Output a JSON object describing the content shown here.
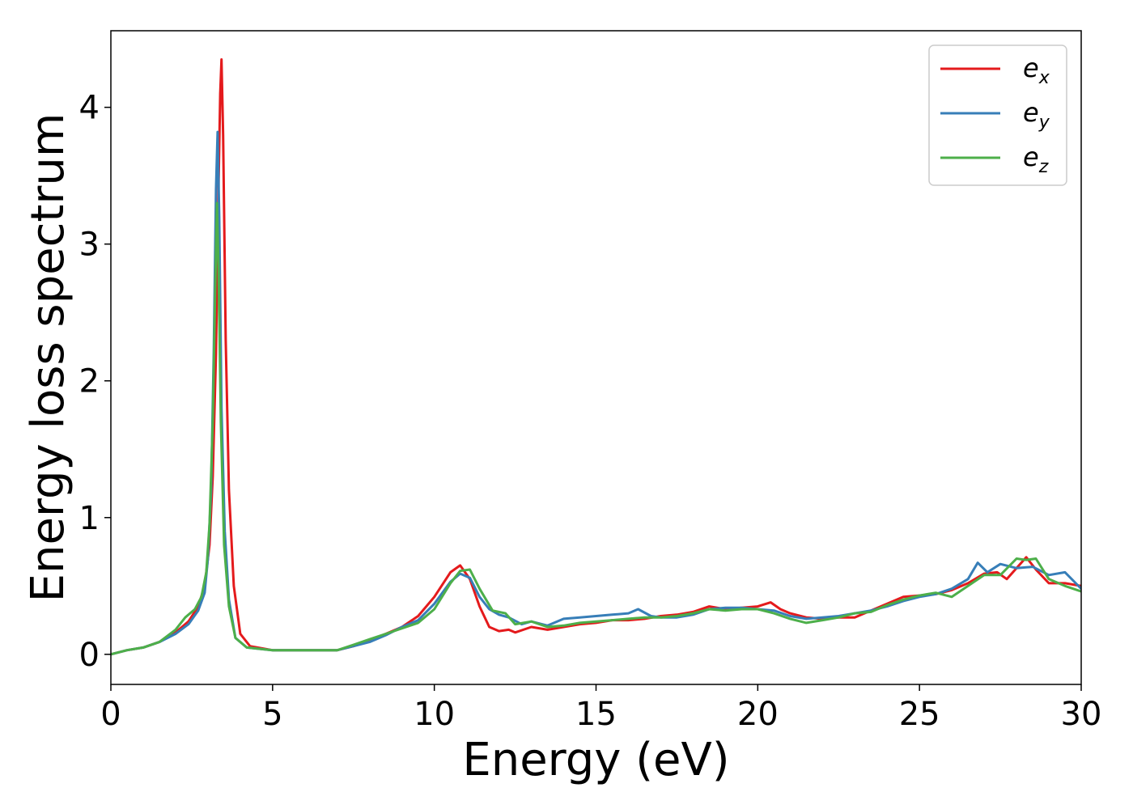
{
  "chart_data": {
    "type": "line",
    "title": "",
    "xlabel": "Energy (eV)",
    "ylabel": "Energy loss spectrum",
    "xlim": [
      0,
      30
    ],
    "ylim": [
      -0.22,
      4.56
    ],
    "xticks": [
      0,
      5,
      10,
      15,
      20,
      25,
      30
    ],
    "yticks": [
      0,
      1,
      2,
      3,
      4
    ],
    "grid": false,
    "legend_position": "top-right",
    "series": [
      {
        "name": "e_x",
        "legend_base": "e",
        "legend_sub": "x",
        "color": "#e41a1c",
        "points": [
          [
            0,
            0
          ],
          [
            0.5,
            0.03
          ],
          [
            1,
            0.05
          ],
          [
            1.5,
            0.09
          ],
          [
            2,
            0.16
          ],
          [
            2.4,
            0.24
          ],
          [
            2.7,
            0.35
          ],
          [
            2.9,
            0.5
          ],
          [
            3.05,
            0.8
          ],
          [
            3.15,
            1.3
          ],
          [
            3.25,
            2.2
          ],
          [
            3.32,
            3.3
          ],
          [
            3.38,
            4.1
          ],
          [
            3.42,
            4.35
          ],
          [
            3.47,
            3.8
          ],
          [
            3.55,
            2.3
          ],
          [
            3.65,
            1.2
          ],
          [
            3.8,
            0.5
          ],
          [
            4,
            0.15
          ],
          [
            4.3,
            0.06
          ],
          [
            5,
            0.03
          ],
          [
            6,
            0.03
          ],
          [
            7,
            0.03
          ],
          [
            7.5,
            0.06
          ],
          [
            8,
            0.1
          ],
          [
            8.5,
            0.15
          ],
          [
            9,
            0.2
          ],
          [
            9.5,
            0.28
          ],
          [
            10,
            0.42
          ],
          [
            10.5,
            0.6
          ],
          [
            10.8,
            0.65
          ],
          [
            11.1,
            0.55
          ],
          [
            11.4,
            0.35
          ],
          [
            11.7,
            0.2
          ],
          [
            12,
            0.17
          ],
          [
            12.3,
            0.18
          ],
          [
            12.5,
            0.16
          ],
          [
            13,
            0.2
          ],
          [
            13.5,
            0.18
          ],
          [
            14,
            0.2
          ],
          [
            14.5,
            0.22
          ],
          [
            15,
            0.23
          ],
          [
            15.5,
            0.25
          ],
          [
            16,
            0.25
          ],
          [
            16.5,
            0.26
          ],
          [
            17,
            0.28
          ],
          [
            17.5,
            0.29
          ],
          [
            18,
            0.31
          ],
          [
            18.5,
            0.35
          ],
          [
            19,
            0.33
          ],
          [
            19.5,
            0.34
          ],
          [
            20,
            0.35
          ],
          [
            20.4,
            0.38
          ],
          [
            20.7,
            0.33
          ],
          [
            21,
            0.3
          ],
          [
            21.5,
            0.27
          ],
          [
            22,
            0.26
          ],
          [
            22.5,
            0.27
          ],
          [
            23,
            0.27
          ],
          [
            23.5,
            0.32
          ],
          [
            24,
            0.37
          ],
          [
            24.5,
            0.42
          ],
          [
            25,
            0.43
          ],
          [
            25.5,
            0.44
          ],
          [
            26,
            0.47
          ],
          [
            26.5,
            0.52
          ],
          [
            27,
            0.59
          ],
          [
            27.4,
            0.6
          ],
          [
            27.7,
            0.55
          ],
          [
            28,
            0.63
          ],
          [
            28.3,
            0.71
          ],
          [
            28.6,
            0.62
          ],
          [
            29,
            0.52
          ],
          [
            29.5,
            0.52
          ],
          [
            30,
            0.5
          ]
        ]
      },
      {
        "name": "e_y",
        "legend_base": "e",
        "legend_sub": "y",
        "color": "#377eb8",
        "points": [
          [
            0,
            0
          ],
          [
            0.5,
            0.03
          ],
          [
            1,
            0.05
          ],
          [
            1.5,
            0.09
          ],
          [
            2,
            0.15
          ],
          [
            2.4,
            0.22
          ],
          [
            2.7,
            0.32
          ],
          [
            2.9,
            0.45
          ],
          [
            3.0,
            0.7
          ],
          [
            3.1,
            1.2
          ],
          [
            3.18,
            2.2
          ],
          [
            3.25,
            3.4
          ],
          [
            3.3,
            3.82
          ],
          [
            3.35,
            3.2
          ],
          [
            3.42,
            1.8
          ],
          [
            3.52,
            0.9
          ],
          [
            3.65,
            0.4
          ],
          [
            3.85,
            0.12
          ],
          [
            4.2,
            0.05
          ],
          [
            5,
            0.03
          ],
          [
            6,
            0.03
          ],
          [
            7,
            0.03
          ],
          [
            7.5,
            0.06
          ],
          [
            8,
            0.09
          ],
          [
            8.5,
            0.14
          ],
          [
            9,
            0.2
          ],
          [
            9.5,
            0.25
          ],
          [
            10,
            0.37
          ],
          [
            10.5,
            0.53
          ],
          [
            10.8,
            0.59
          ],
          [
            11.1,
            0.56
          ],
          [
            11.4,
            0.42
          ],
          [
            11.7,
            0.33
          ],
          [
            12,
            0.29
          ],
          [
            12.3,
            0.27
          ],
          [
            12.7,
            0.22
          ],
          [
            13,
            0.24
          ],
          [
            13.5,
            0.21
          ],
          [
            14,
            0.26
          ],
          [
            14.5,
            0.27
          ],
          [
            15,
            0.28
          ],
          [
            15.5,
            0.29
          ],
          [
            16,
            0.3
          ],
          [
            16.3,
            0.33
          ],
          [
            16.7,
            0.28
          ],
          [
            17,
            0.27
          ],
          [
            17.5,
            0.27
          ],
          [
            18,
            0.29
          ],
          [
            18.5,
            0.33
          ],
          [
            19,
            0.34
          ],
          [
            19.5,
            0.34
          ],
          [
            20,
            0.33
          ],
          [
            20.5,
            0.32
          ],
          [
            21,
            0.28
          ],
          [
            21.5,
            0.26
          ],
          [
            22,
            0.27
          ],
          [
            22.5,
            0.28
          ],
          [
            23,
            0.3
          ],
          [
            23.5,
            0.32
          ],
          [
            24,
            0.35
          ],
          [
            24.5,
            0.39
          ],
          [
            25,
            0.42
          ],
          [
            25.5,
            0.44
          ],
          [
            26,
            0.48
          ],
          [
            26.5,
            0.55
          ],
          [
            26.8,
            0.67
          ],
          [
            27.1,
            0.6
          ],
          [
            27.5,
            0.66
          ],
          [
            28,
            0.63
          ],
          [
            28.5,
            0.64
          ],
          [
            29,
            0.58
          ],
          [
            29.5,
            0.6
          ],
          [
            30,
            0.48
          ]
        ]
      },
      {
        "name": "e_z",
        "legend_base": "e",
        "legend_sub": "z",
        "color": "#4daf4a",
        "points": [
          [
            0,
            0
          ],
          [
            0.5,
            0.03
          ],
          [
            1,
            0.05
          ],
          [
            1.5,
            0.09
          ],
          [
            2,
            0.18
          ],
          [
            2.3,
            0.27
          ],
          [
            2.6,
            0.33
          ],
          [
            2.8,
            0.42
          ],
          [
            2.95,
            0.6
          ],
          [
            3.05,
            0.95
          ],
          [
            3.15,
            1.7
          ],
          [
            3.22,
            2.6
          ],
          [
            3.28,
            3.3
          ],
          [
            3.33,
            2.8
          ],
          [
            3.4,
            1.7
          ],
          [
            3.5,
            0.8
          ],
          [
            3.65,
            0.35
          ],
          [
            3.85,
            0.12
          ],
          [
            4.2,
            0.05
          ],
          [
            5,
            0.03
          ],
          [
            6,
            0.03
          ],
          [
            7,
            0.03
          ],
          [
            7.5,
            0.07
          ],
          [
            8,
            0.11
          ],
          [
            8.5,
            0.15
          ],
          [
            9,
            0.19
          ],
          [
            9.5,
            0.23
          ],
          [
            10,
            0.33
          ],
          [
            10.5,
            0.52
          ],
          [
            10.8,
            0.61
          ],
          [
            11.1,
            0.62
          ],
          [
            11.4,
            0.48
          ],
          [
            11.8,
            0.32
          ],
          [
            12.2,
            0.3
          ],
          [
            12.5,
            0.22
          ],
          [
            13,
            0.24
          ],
          [
            13.5,
            0.2
          ],
          [
            14,
            0.21
          ],
          [
            14.5,
            0.23
          ],
          [
            15,
            0.24
          ],
          [
            15.5,
            0.25
          ],
          [
            16,
            0.26
          ],
          [
            16.5,
            0.27
          ],
          [
            17,
            0.27
          ],
          [
            17.5,
            0.28
          ],
          [
            18,
            0.3
          ],
          [
            18.5,
            0.33
          ],
          [
            19,
            0.32
          ],
          [
            19.5,
            0.33
          ],
          [
            20,
            0.33
          ],
          [
            20.5,
            0.3
          ],
          [
            21,
            0.26
          ],
          [
            21.5,
            0.23
          ],
          [
            22,
            0.25
          ],
          [
            22.5,
            0.27
          ],
          [
            23,
            0.3
          ],
          [
            23.5,
            0.31
          ],
          [
            24,
            0.36
          ],
          [
            24.5,
            0.4
          ],
          [
            25,
            0.43
          ],
          [
            25.5,
            0.45
          ],
          [
            26,
            0.42
          ],
          [
            26.5,
            0.5
          ],
          [
            27,
            0.58
          ],
          [
            27.5,
            0.58
          ],
          [
            28,
            0.7
          ],
          [
            28.3,
            0.69
          ],
          [
            28.6,
            0.7
          ],
          [
            29,
            0.55
          ],
          [
            29.5,
            0.5
          ],
          [
            30,
            0.46
          ]
        ]
      }
    ]
  }
}
